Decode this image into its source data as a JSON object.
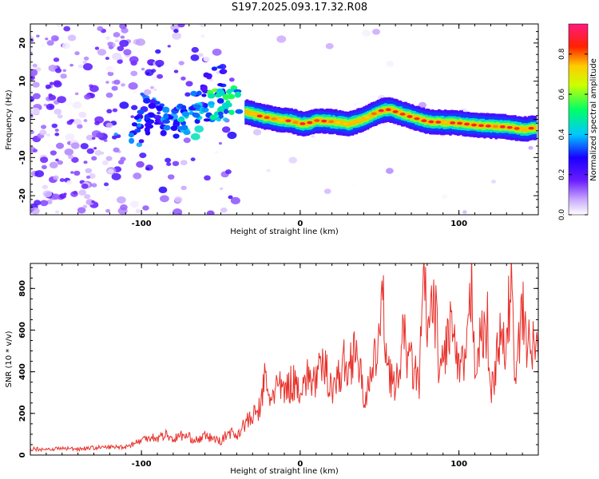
{
  "page": {
    "title": "S197.2025.093.17.32.R08"
  },
  "colors": {
    "ridge_scale": [
      "#ffffff",
      "#e8d8ff",
      "#8a3dff",
      "#2a00f0",
      "#00c8ff",
      "#00ff66",
      "#ffff00",
      "#ff2200",
      "#ff1a7f"
    ],
    "snr_line": "#e8302a"
  },
  "chart_data": [
    {
      "type": "heatmap",
      "xlabel": "Height of straight line (km)",
      "ylabel": "Frequency (Hz)",
      "xlim": [
        -170,
        150
      ],
      "ylim": [
        -25,
        25
      ],
      "x_ticks": [
        -100,
        0,
        100
      ],
      "y_ticks": [
        -20,
        -10,
        0,
        10,
        20
      ],
      "colorbar": {
        "label": "Normalized spectral amplitude",
        "range": [
          0.0,
          0.95
        ],
        "ticks": [
          0.0,
          0.2,
          0.4,
          0.6,
          0.8
        ]
      },
      "ridge": {
        "x": [
          -35,
          -25,
          -15,
          -5,
          0,
          5,
          10,
          20,
          30,
          40,
          50,
          55,
          60,
          70,
          80,
          90,
          100,
          110,
          120,
          130,
          140,
          148
        ],
        "frequency": [
          2.0,
          0.8,
          0.0,
          -0.5,
          -1.2,
          -1.0,
          -0.3,
          -0.6,
          -1.2,
          0.2,
          2.2,
          2.6,
          2.0,
          0.6,
          -0.6,
          -0.8,
          -1.0,
          -1.5,
          -1.8,
          -2.0,
          -2.6,
          -2.2
        ],
        "amplitude": 0.9
      },
      "clusters": [
        {
          "x": -100,
          "frequency": -2,
          "amplitude": 0.35
        },
        {
          "x": -90,
          "frequency": 1,
          "amplitude": 0.3
        },
        {
          "x": -80,
          "frequency": -1,
          "amplitude": 0.35
        },
        {
          "x": -70,
          "frequency": 0,
          "amplitude": 0.45
        },
        {
          "x": -62,
          "frequency": 3,
          "amplitude": 0.4
        },
        {
          "x": -55,
          "frequency": 10,
          "amplitude": 0.3
        },
        {
          "x": -50,
          "frequency": 4,
          "amplitude": 0.55
        },
        {
          "x": -45,
          "frequency": 5,
          "amplitude": 0.5
        }
      ]
    },
    {
      "type": "line",
      "xlabel": "Height of straight line (km)",
      "ylabel": "SNR (10 * v/v)",
      "xlim": [
        -170,
        150
      ],
      "ylim": [
        0,
        920
      ],
      "x_ticks": [
        -100,
        0,
        100
      ],
      "y_ticks": [
        0,
        200,
        400,
        600,
        800
      ],
      "series": [
        {
          "x": [
            -170,
            -160,
            -150,
            -140,
            -130,
            -120,
            -110,
            -100,
            -95,
            -90,
            -85,
            -80,
            -75,
            -70,
            -65,
            -60,
            -55,
            -50,
            -45,
            -40,
            -35,
            -30,
            -25,
            -22,
            -20,
            -15,
            -10,
            -5,
            0,
            5,
            10,
            15,
            20,
            25,
            28,
            30,
            35,
            37,
            40,
            45,
            50,
            52,
            55,
            60,
            65,
            70,
            75,
            78,
            80,
            85,
            88,
            90,
            95,
            100,
            105,
            108,
            110,
            115,
            118,
            120,
            125,
            130,
            133,
            135,
            140,
            145,
            148,
            150
          ],
          "y": [
            30,
            28,
            32,
            30,
            35,
            38,
            40,
            70,
            90,
            80,
            100,
            75,
            95,
            85,
            70,
            90,
            80,
            65,
            110,
            95,
            150,
            180,
            230,
            380,
            260,
            330,
            300,
            350,
            330,
            370,
            360,
            430,
            330,
            380,
            450,
            380,
            570,
            420,
            280,
            350,
            600,
            720,
            450,
            300,
            560,
            430,
            350,
            850,
            600,
            700,
            380,
            460,
            640,
            380,
            480,
            820,
            480,
            560,
            620,
            270,
            550,
            500,
            920,
            320,
            680,
            480,
            550,
            460
          ]
        }
      ]
    }
  ]
}
